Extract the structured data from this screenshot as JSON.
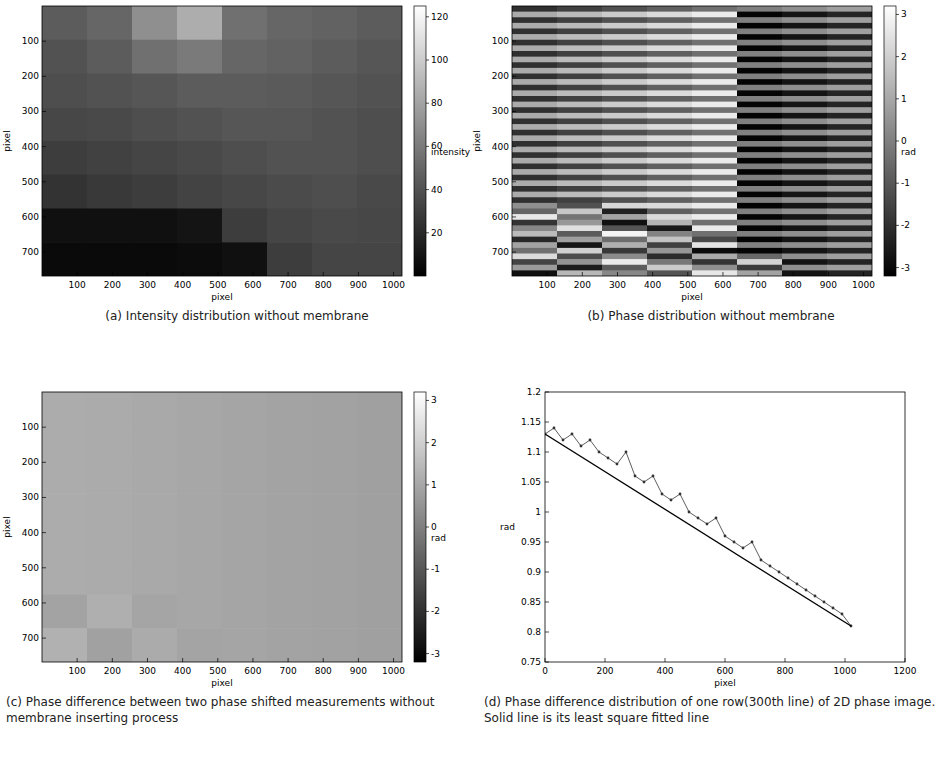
{
  "chart_data": [
    {
      "type": "heatmap",
      "title": "(a) Intensity distribution without membrane",
      "xlabel": "pixel",
      "ylabel": "pixel",
      "xlim": [
        0,
        1024
      ],
      "ylim": [
        0,
        768
      ],
      "xticks": [
        100,
        200,
        300,
        400,
        500,
        600,
        700,
        800,
        900,
        1000
      ],
      "yticks": [
        100,
        200,
        300,
        400,
        500,
        600,
        700
      ],
      "z": [
        [
          45,
          50,
          70,
          85,
          55,
          50,
          48,
          45
        ],
        [
          40,
          45,
          55,
          60,
          50,
          48,
          45,
          42
        ],
        [
          38,
          40,
          42,
          45,
          45,
          44,
          42,
          40
        ],
        [
          35,
          36,
          38,
          40,
          42,
          42,
          40,
          38
        ],
        [
          30,
          32,
          34,
          36,
          38,
          40,
          40,
          38
        ],
        [
          25,
          28,
          30,
          33,
          35,
          37,
          38,
          36
        ],
        [
          8,
          8,
          8,
          10,
          30,
          34,
          36,
          35
        ],
        [
          5,
          5,
          5,
          6,
          8,
          30,
          34,
          34
        ]
      ],
      "colorbar": {
        "range": [
          0,
          125
        ],
        "ticks": [
          20,
          40,
          60,
          80,
          100,
          120
        ],
        "label": "intensity"
      }
    },
    {
      "type": "heatmap",
      "title": "(b) Phase distribution without membrane",
      "xlabel": "pixel",
      "ylabel": "pixel",
      "xlim": [
        0,
        1024
      ],
      "ylim": [
        0,
        768
      ],
      "xticks": [
        100,
        200,
        300,
        400,
        500,
        600,
        700,
        800,
        900,
        1000
      ],
      "yticks": [
        100,
        200,
        300,
        400,
        500,
        600,
        700
      ],
      "z": [
        [
          -2,
          -1.6,
          -1.2,
          -0.8,
          -0.4,
          0,
          0.4,
          0.8
        ],
        [
          1.1,
          1.5,
          1.9,
          2.3,
          2.7,
          -3.1,
          -2.7,
          -2.3
        ],
        [
          -2,
          -1.6,
          -1.2,
          -0.8,
          -0.4,
          0,
          0.4,
          0.8
        ],
        [
          1.1,
          1.5,
          1.9,
          2.3,
          2.7,
          -3.1,
          -2.7,
          -2.3
        ],
        [
          -2,
          -1.6,
          -1.2,
          -0.8,
          -0.4,
          0,
          0.4,
          0.8
        ],
        [
          1.1,
          1.5,
          1.9,
          2.3,
          2.7,
          -3.1,
          -2.7,
          -2.3
        ],
        [
          -2,
          -1.6,
          -1.2,
          -0.8,
          -0.4,
          0,
          0.4,
          0.8
        ],
        [
          1.1,
          1.5,
          1.9,
          2.3,
          2.7,
          -3.1,
          -2.7,
          -2.3
        ],
        [
          -2,
          -1.6,
          -1.2,
          -0.8,
          -0.4,
          0,
          0.4,
          0.8
        ],
        [
          1.1,
          1.5,
          1.9,
          2.3,
          2.7,
          -3.1,
          -2.7,
          -2.3
        ],
        [
          -2,
          -1.6,
          -1.2,
          -0.8,
          -0.4,
          0,
          0.4,
          0.8
        ],
        [
          1.1,
          1.5,
          1.9,
          2.3,
          2.7,
          -3.1,
          -2.7,
          -2.3
        ],
        [
          -2,
          -1.6,
          -1.2,
          -0.8,
          -0.4,
          0,
          0.4,
          0.8
        ],
        [
          1.1,
          1.5,
          1.9,
          2.3,
          2.7,
          -3.1,
          -2.7,
          -2.3
        ],
        [
          -2,
          -1.6,
          -1.2,
          -0.8,
          -0.4,
          0,
          0.4,
          0.8
        ],
        [
          1.1,
          1.5,
          1.9,
          2.3,
          2.7,
          -3.1,
          -2.7,
          -2.3
        ],
        [
          -2,
          -1.6,
          -1.2,
          -0.8,
          -0.4,
          0,
          0.4,
          0.8
        ],
        [
          1.1,
          1.5,
          1.9,
          2.3,
          2.7,
          -3.1,
          -2.7,
          -2.3
        ],
        [
          -2,
          -1.6,
          -1.2,
          -0.8,
          -0.4,
          0,
          0.4,
          0.8
        ],
        [
          1.1,
          1.5,
          1.9,
          2.3,
          2.7,
          -3.1,
          -2.7,
          -2.3
        ],
        [
          -2,
          -1.6,
          -1.2,
          -0.8,
          -0.4,
          0,
          0.4,
          0.8
        ],
        [
          1.1,
          1.5,
          1.9,
          2.3,
          2.7,
          -3.1,
          -2.7,
          -2.3
        ],
        [
          -2,
          -1.6,
          -1.2,
          -0.8,
          -0.4,
          0,
          0.4,
          0.8
        ],
        [
          1.1,
          1.5,
          1.9,
          2.3,
          2.7,
          -3.1,
          -2.7,
          -2.3
        ],
        [
          -2,
          -1.6,
          -1.2,
          -0.8,
          -0.4,
          0,
          0.4,
          0.8
        ],
        [
          1.1,
          1.5,
          1.9,
          2.3,
          2.7,
          -3.1,
          -2.7,
          -2.3
        ],
        [
          -2,
          -1.6,
          -1.2,
          -0.8,
          -0.4,
          0,
          0.4,
          0.8
        ],
        [
          1.1,
          1.5,
          1.9,
          2.3,
          2.7,
          -3.1,
          -2.7,
          -2.3
        ],
        [
          -2,
          -1.6,
          -1.2,
          -0.8,
          -0.4,
          0,
          0.4,
          0.8
        ],
        [
          1.1,
          1.5,
          1.9,
          2.3,
          2.7,
          -3.1,
          -2.7,
          -2.3
        ],
        [
          -2,
          -1.6,
          -1.2,
          -0.8,
          -0.4,
          0,
          0.4,
          0.8
        ],
        [
          1.1,
          1.5,
          1.9,
          2.3,
          2.7,
          -3.1,
          -2.7,
          -2.3
        ],
        [
          -2,
          -1.6,
          -1.2,
          -0.8,
          -0.4,
          0,
          0.4,
          0.8
        ],
        [
          1.1,
          1.5,
          1.9,
          2.3,
          2.7,
          -3.1,
          -2.7,
          -2.3
        ],
        [
          -2,
          -1.6,
          -1.2,
          -0.8,
          -0.4,
          0,
          0.4,
          0.8
        ],
        [
          0.4,
          -1.2,
          2.2,
          2.3,
          2.7,
          -3.1,
          -2.7,
          -2.3
        ],
        [
          -0.7,
          1.8,
          -2.4,
          -0.8,
          -0.4,
          0,
          0.4,
          0.8
        ],
        [
          2.6,
          -0.3,
          0.9,
          2.3,
          2.7,
          -3.1,
          -2.7,
          -2.3
        ],
        [
          -1.9,
          0.6,
          -2.8,
          1.3,
          -0.4,
          0,
          0.4,
          0.8
        ],
        [
          0.2,
          2.4,
          -1.1,
          -2.6,
          2.7,
          -3.1,
          -2.7,
          -2.3
        ],
        [
          1.5,
          -0.9,
          2.9,
          0.1,
          -0.4,
          0,
          0.4,
          0.8
        ],
        [
          -2.2,
          0.8,
          -0.5,
          1.7,
          -1.4,
          -3.1,
          -2.7,
          -2.3
        ],
        [
          0.9,
          -2.7,
          1.2,
          -1.6,
          2.5,
          0,
          0.4,
          0.8
        ],
        [
          -0.4,
          2.0,
          -1.8,
          0.6,
          -2.9,
          -3.1,
          -2.7,
          -2.3
        ],
        [
          2.3,
          -1.3,
          0.3,
          -2.1,
          1.1,
          -0.6,
          0.4,
          0.8
        ],
        [
          -1.5,
          0.5,
          2.7,
          -0.2,
          -1.9,
          2.1,
          -2.7,
          -2.3
        ],
        [
          0.7,
          -2.5,
          -0.9,
          1.9,
          0.4,
          -1.7,
          0.4,
          0.8
        ],
        [
          -2.8,
          1.4,
          0.2,
          -1.1,
          2.6,
          0.9,
          -2.7,
          -2.3
        ]
      ],
      "colorbar": {
        "range": [
          -3.2,
          3.2
        ],
        "ticks": [
          -3,
          -2,
          -1,
          0,
          1,
          2,
          3
        ],
        "label": "rad"
      }
    },
    {
      "type": "heatmap",
      "title": "(c) Phase difference between two phase shifted measurements without membrane inserting process",
      "xlabel": "pixel",
      "ylabel": "pixel",
      "xlim": [
        0,
        1024
      ],
      "ylim": [
        0,
        768
      ],
      "xticks": [
        100,
        200,
        300,
        400,
        500,
        600,
        700,
        800,
        900,
        1000
      ],
      "yticks": [
        100,
        200,
        300,
        400,
        500,
        600,
        700
      ],
      "z": [
        [
          1.12,
          1.08,
          1.03,
          0.99,
          0.94,
          0.9,
          0.86,
          0.82
        ],
        [
          1.12,
          1.08,
          1.03,
          0.99,
          0.94,
          0.9,
          0.86,
          0.82
        ],
        [
          1.12,
          1.08,
          1.03,
          0.99,
          0.94,
          0.9,
          0.86,
          0.82
        ],
        [
          1.12,
          1.08,
          1.03,
          0.99,
          0.94,
          0.9,
          0.86,
          0.82
        ],
        [
          1.12,
          1.08,
          1.03,
          0.99,
          0.94,
          0.9,
          0.86,
          0.82
        ],
        [
          1.12,
          1.08,
          1.03,
          0.99,
          0.94,
          0.9,
          0.86,
          0.82
        ],
        [
          0.9,
          1.2,
          0.95,
          0.99,
          0.94,
          0.9,
          0.86,
          0.82
        ],
        [
          1.25,
          0.85,
          1.1,
          0.92,
          0.94,
          0.9,
          0.86,
          0.82
        ]
      ],
      "colorbar": {
        "range": [
          -3.2,
          3.2
        ],
        "ticks": [
          -3,
          -2,
          -1,
          0,
          1,
          2,
          3
        ],
        "label": "rad"
      }
    },
    {
      "type": "line",
      "title": "(d) Phase difference distribution of one row(300th line) of 2D phase image. Solid line is its least square fitted line",
      "xlabel": "pixel",
      "ylabel": "rad",
      "xlim": [
        0,
        1200
      ],
      "ylim": [
        0.75,
        1.2
      ],
      "xticks": [
        0,
        200,
        400,
        600,
        800,
        1000,
        1200
      ],
      "yticks": [
        0.75,
        0.8,
        0.85,
        0.9,
        0.95,
        1,
        1.05,
        1.1,
        1.15,
        1.2
      ],
      "x": [
        0,
        30,
        60,
        90,
        120,
        150,
        180,
        210,
        240,
        270,
        300,
        330,
        360,
        390,
        420,
        450,
        480,
        510,
        540,
        570,
        600,
        630,
        660,
        690,
        720,
        750,
        780,
        810,
        840,
        870,
        900,
        930,
        960,
        990,
        1020
      ],
      "series": [
        {
          "color": "#333333",
          "marker": "dot",
          "line_style": "solid",
          "values": [
            1.13,
            1.14,
            1.12,
            1.13,
            1.11,
            1.12,
            1.1,
            1.09,
            1.08,
            1.1,
            1.06,
            1.05,
            1.06,
            1.03,
            1.02,
            1.03,
            1,
            0.99,
            0.98,
            0.99,
            0.96,
            0.95,
            0.94,
            0.95,
            0.92,
            0.91,
            0.9,
            0.89,
            0.88,
            0.87,
            0.86,
            0.85,
            0.84,
            0.83,
            0.81
          ]
        },
        {
          "color": "#000000",
          "line_style": "solid",
          "x": [
            0,
            1020
          ],
          "values": [
            1.13,
            0.81
          ]
        }
      ]
    }
  ]
}
